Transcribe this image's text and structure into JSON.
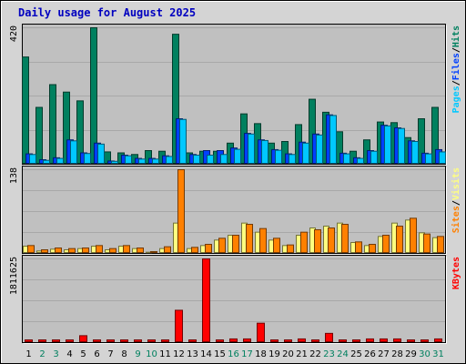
{
  "title": "Daily usage for August 2025",
  "colors": {
    "background": "#d4d4d4",
    "plot_bg": "#c0c0c0",
    "grid": "#a8a8a8",
    "title": "#0000c0",
    "hits": "#00805f",
    "files": "#0040ff",
    "pages": "#00c8ff",
    "visits": "#ffff80",
    "sites": "#ff8000",
    "kbytes": "#ff0000",
    "weekend_day": "#00805f",
    "weekday_day": "#000000"
  },
  "days": [
    "1",
    "2",
    "3",
    "4",
    "5",
    "6",
    "7",
    "8",
    "9",
    "10",
    "11",
    "12",
    "13",
    "14",
    "15",
    "16",
    "17",
    "18",
    "19",
    "20",
    "21",
    "22",
    "23",
    "24",
    "25",
    "26",
    "27",
    "28",
    "29",
    "30",
    "31"
  ],
  "weekend_days": [
    "2",
    "3",
    "9",
    "10",
    "16",
    "17",
    "23",
    "24",
    "30",
    "31"
  ],
  "chart_data": [
    {
      "type": "bar",
      "ymax_label": "420",
      "ylim": [
        0,
        420
      ],
      "right_labels": [
        "Pages",
        "Files",
        "Hits"
      ],
      "label_separator": "/",
      "series": [
        {
          "name": "Hits",
          "values": [
            330,
            175,
            245,
            222,
            195,
            420,
            38,
            35,
            30,
            42,
            40,
            400,
            35,
            40,
            40,
            65,
            155,
            125,
            65,
            70,
            122,
            200,
            160,
            100,
            40,
            75,
            130,
            128,
            82,
            140,
            175
          ]
        },
        {
          "name": "Files",
          "values": [
            32,
            14,
            20,
            75,
            35,
            65,
            10,
            28,
            18,
            18,
            26,
            140,
            30,
            42,
            42,
            50,
            95,
            75,
            45,
            32,
            68,
            93,
            152,
            34,
            20,
            42,
            120,
            112,
            72,
            34,
            45
          ]
        },
        {
          "name": "Pages",
          "values": [
            30,
            12,
            18,
            72,
            33,
            62,
            9,
            26,
            16,
            16,
            24,
            138,
            28,
            28,
            30,
            46,
            93,
            73,
            43,
            30,
            65,
            90,
            150,
            32,
            18,
            40,
            118,
            110,
            70,
            32,
            38
          ]
        }
      ]
    },
    {
      "type": "bar",
      "ymax_label": "138",
      "ylim": [
        0,
        138
      ],
      "right_labels": [
        "Sites",
        "Visits"
      ],
      "label_separator": "/",
      "series": [
        {
          "name": "Visits",
          "values": [
            12,
            4,
            7,
            6,
            8,
            12,
            6,
            12,
            8,
            2,
            8,
            50,
            8,
            13,
            22,
            30,
            50,
            35,
            22,
            13,
            30,
            42,
            45,
            50,
            18,
            13,
            28,
            50,
            55,
            34,
            26
          ]
        },
        {
          "name": "Sites",
          "values": [
            13,
            6,
            9,
            8,
            9,
            13,
            8,
            13,
            9,
            3,
            11,
            138,
            10,
            15,
            25,
            30,
            48,
            41,
            25,
            14,
            35,
            39,
            42,
            48,
            19,
            15,
            30,
            45,
            58,
            32,
            28
          ]
        }
      ]
    },
    {
      "type": "bar",
      "ymax_label": "1811625",
      "ylim": [
        0,
        1811625
      ],
      "right_labels": [
        "KBytes"
      ],
      "label_separator": "",
      "series": [
        {
          "name": "KBytes",
          "values": [
            0,
            0,
            0,
            0,
            150000,
            0,
            0,
            0,
            0,
            0,
            0,
            700000,
            0,
            1811625,
            0,
            80000,
            80000,
            420000,
            0,
            0,
            80000,
            0,
            200000,
            0,
            0,
            80000,
            80000,
            80000,
            0,
            0,
            80000
          ]
        }
      ]
    }
  ]
}
